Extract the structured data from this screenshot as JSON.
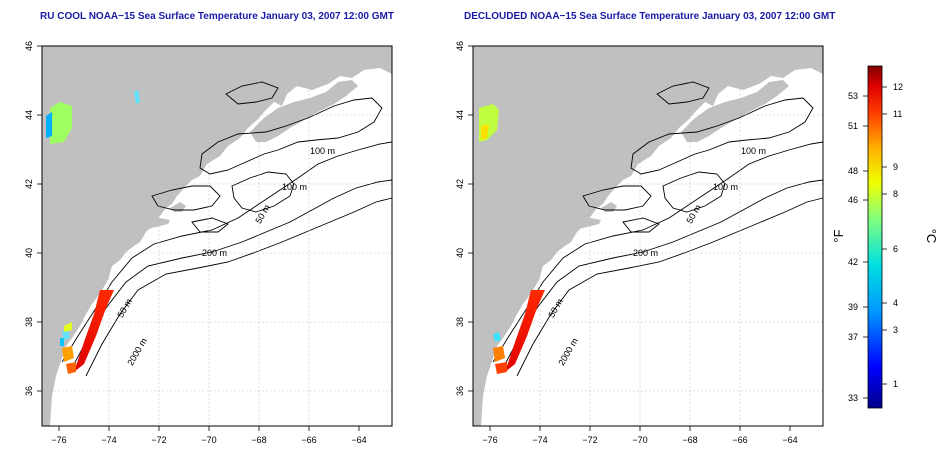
{
  "titles": {
    "left": "RU COOL NOAA−15 Sea Surface Temperature January 03, 2007 12:00 GMT",
    "right": "DECLOUDED NOAA−15 Sea Surface Temperature January 03, 2007 12:00 GMT"
  },
  "axes": {
    "x_ticks": [
      "−76",
      "−74",
      "−72",
      "−70",
      "−68",
      "−66",
      "−64"
    ],
    "y_ticks": [
      "36",
      "38",
      "40",
      "42",
      "44",
      "46"
    ],
    "lon_range": [
      -77,
      -63
    ],
    "lat_range": [
      35,
      46
    ]
  },
  "contour_labels": {
    "c100a": "100 m",
    "c100b": "100 m",
    "c50a": "50 m",
    "c200": "200 m",
    "c50b": "50 m",
    "c2000": "2000 m"
  },
  "colorbar": {
    "fahrenheit_label": "°F",
    "celsius_label": "°C",
    "fahrenheit_ticks": [
      "53",
      "51",
      "48",
      "46",
      "42",
      "39",
      "37",
      "33"
    ],
    "celsius_ticks": [
      "12",
      "11",
      "9",
      "8",
      "6",
      "4",
      "3",
      "1"
    ],
    "range_c": [
      0,
      13
    ]
  },
  "colors": {
    "land": "#c0c0c0",
    "water": "#ffffff",
    "title": "#1a1aa8"
  }
}
